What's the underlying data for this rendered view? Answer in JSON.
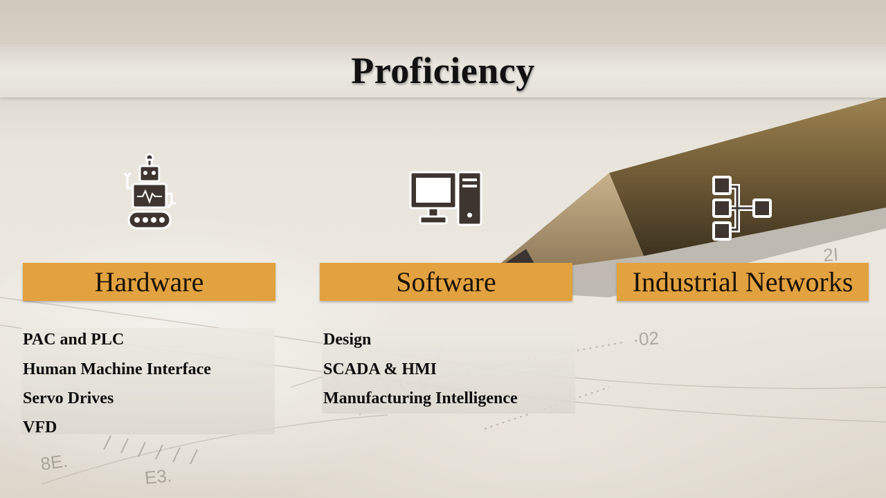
{
  "slide": {
    "title": "Proficiency",
    "accent_color": "#e3a240",
    "columns": [
      {
        "heading": "Hardware",
        "icon": "robot-icon",
        "items": [
          "PAC and PLC",
          "Human Machine Interface",
          "Servo Drives",
          "VFD"
        ]
      },
      {
        "heading": "Software",
        "icon": "computer-icon",
        "items": [
          "Design",
          "SCADA & HMI",
          "Manufacturing Intelligence"
        ]
      },
      {
        "heading": "Industrial Networks",
        "icon": "network-hierarchy-icon",
        "items": []
      }
    ]
  },
  "background": {
    "decorative_numbers": [
      "8E",
      "E3",
      "02",
      "2I"
    ]
  }
}
